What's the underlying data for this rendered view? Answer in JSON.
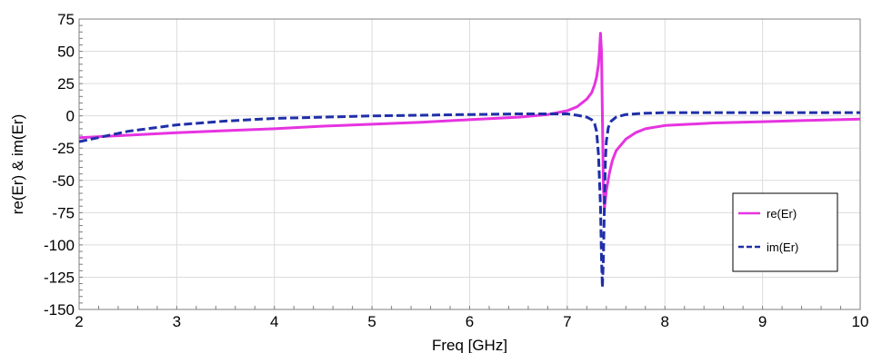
{
  "chart_data": {
    "type": "line",
    "title": "",
    "xlabel": "Freq [GHz]",
    "ylabel": "re(Er) & im(Er)",
    "xlim": [
      2,
      10
    ],
    "ylim": [
      -150,
      75
    ],
    "xticks": [
      2,
      3,
      4,
      5,
      6,
      7,
      8,
      9,
      10
    ],
    "yticks": [
      75,
      50,
      25,
      0,
      -25,
      -50,
      -75,
      -100,
      -125,
      -150
    ],
    "grid": true,
    "legend_position": "bottom-right",
    "series": [
      {
        "name": "re(Er)",
        "color": "#e633e0",
        "style": "solid",
        "x": [
          2.0,
          2.5,
          3.0,
          3.5,
          4.0,
          4.5,
          5.0,
          5.5,
          6.0,
          6.5,
          6.8,
          7.0,
          7.1,
          7.2,
          7.25,
          7.28,
          7.3,
          7.32,
          7.33,
          7.34,
          7.35,
          7.36,
          7.37,
          7.38,
          7.4,
          7.43,
          7.46,
          7.5,
          7.6,
          7.7,
          7.8,
          8.0,
          8.5,
          9.0,
          9.5,
          10.0
        ],
        "y": [
          -17,
          -15,
          -13,
          -11.5,
          -10,
          -8,
          -6.5,
          -5,
          -3,
          -1,
          1,
          4,
          7,
          13,
          18,
          24,
          30,
          40,
          50,
          64,
          50,
          0,
          -55,
          -72,
          -58,
          -45,
          -35,
          -27,
          -18,
          -13,
          -10,
          -7.5,
          -5.5,
          -4.5,
          -3.5,
          -2.5
        ]
      },
      {
        "name": "im(Er)",
        "color": "#1f2fa8",
        "style": "dashed",
        "x": [
          2.0,
          2.5,
          3.0,
          3.5,
          4.0,
          4.5,
          5.0,
          5.5,
          6.0,
          6.5,
          7.0,
          7.1,
          7.2,
          7.25,
          7.28,
          7.3,
          7.32,
          7.34,
          7.35,
          7.36,
          7.37,
          7.38,
          7.39,
          7.4,
          7.42,
          7.45,
          7.5,
          7.6,
          7.8,
          8.0,
          9.0,
          10.0
        ],
        "y": [
          -20,
          -12,
          -7,
          -4,
          -2,
          -1,
          0,
          0.5,
          1,
          1.5,
          1.5,
          0.5,
          -1,
          -3,
          -6,
          -12,
          -30,
          -70,
          -110,
          -133,
          -110,
          -70,
          -35,
          -20,
          -9,
          -4,
          -1,
          1,
          2,
          2.5,
          2.5,
          2.5
        ]
      }
    ]
  }
}
